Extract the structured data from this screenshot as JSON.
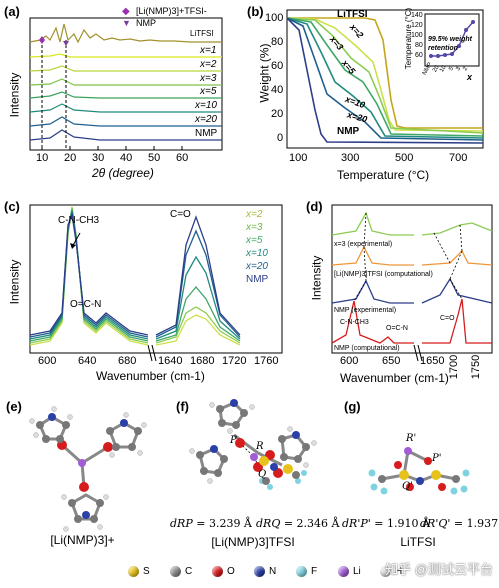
{
  "panels": {
    "a": {
      "label": "(a)",
      "xlabel": "2θ (degree)",
      "ylabel": "Intensity",
      "xticks": [
        "10",
        "20",
        "30",
        "40",
        "50",
        "60"
      ],
      "legend": [
        "[Li(NMP)3]+TFSI-",
        "NMP"
      ],
      "series": [
        "LiTFSI",
        "x=1",
        "x=2",
        "x=3",
        "x=5",
        "x=10",
        "x=20",
        "NMP"
      ]
    },
    "b": {
      "label": "(b)",
      "xlabel": "Temperature (°C)",
      "ylabel": "Weight (%)",
      "xticks": [
        "100",
        "300",
        "500",
        "700"
      ],
      "yticks": [
        "0",
        "20",
        "40",
        "60",
        "80",
        "100"
      ],
      "labels": [
        "LiTFSI",
        "x=2",
        "x=3",
        "x=5",
        "x=10",
        "x=20",
        "NMP"
      ],
      "inset": {
        "ylabel": "Temperature (°C)",
        "yticks": [
          "60",
          "80",
          "100",
          "120",
          "140"
        ],
        "xticks": [
          "NMP",
          "20",
          "10",
          "5",
          "3",
          "2"
        ],
        "xlabel": "x",
        "note_line1": "99.5% weight",
        "note_line2": "retention"
      }
    },
    "c": {
      "label": "(c)",
      "xlabel": "Wavenumber (cm-1)",
      "ylabel": "Intensity",
      "xticks_left": [
        "600",
        "640",
        "680"
      ],
      "xticks_right": [
        "1640",
        "1680",
        "1720",
        "1760"
      ],
      "annotations": [
        "C-N-CH3",
        "O=C-N",
        "C=O"
      ],
      "legend": [
        "x=2",
        "x=3",
        "x=5",
        "x=10",
        "x=20",
        "NMP"
      ]
    },
    "d": {
      "label": "(d)",
      "xlabel": "Wavenumber (cm-1)",
      "ylabel": "Intensity",
      "xticks_left": [
        "600",
        "650"
      ],
      "xticks_right": [
        "1700",
        "1750"
      ],
      "xticks_mid": [
        "1650"
      ],
      "traces": [
        "x=3 (experimental)",
        "[Li(NMP)3]TFSI (computational)",
        "NMP (experimental)",
        "NMP (computational)"
      ],
      "annotations": [
        "C-N-CH3",
        "O=C-N",
        "C=O"
      ]
    },
    "e": {
      "label": "(e)",
      "caption": "[Li(NMP)3]+"
    },
    "f": {
      "label": "(f)",
      "caption": "[Li(NMP)3]TFSI",
      "atoms": [
        "P",
        "R",
        "Q"
      ],
      "d1_label": "dRP",
      "d1_value": "= 3.239 Å",
      "d2_label": "dRQ",
      "d2_value": "= 2.346 Å"
    },
    "g": {
      "label": "(g)",
      "caption": "LiTFSI",
      "atoms": [
        "R'",
        "P'",
        "Q'"
      ],
      "d1_label": "dR'P'",
      "d1_value": "= 1.910 Å",
      "d2_label": "dR'Q'",
      "d2_value": "= 1.937 Å"
    }
  },
  "atom_legend": [
    {
      "symbol": "S",
      "color": "#e8c21a"
    },
    {
      "symbol": "C",
      "color": "#8a8a8a"
    },
    {
      "symbol": "O",
      "color": "#d61c1c"
    },
    {
      "symbol": "N",
      "color": "#2a3fa8"
    },
    {
      "symbol": "F",
      "color": "#7fd3e0"
    },
    {
      "symbol": "Li",
      "color": "#a35bd6"
    },
    {
      "symbol": "H",
      "color": "#d9d9d9"
    }
  ],
  "watermark": "知乎 @测试云平台"
}
